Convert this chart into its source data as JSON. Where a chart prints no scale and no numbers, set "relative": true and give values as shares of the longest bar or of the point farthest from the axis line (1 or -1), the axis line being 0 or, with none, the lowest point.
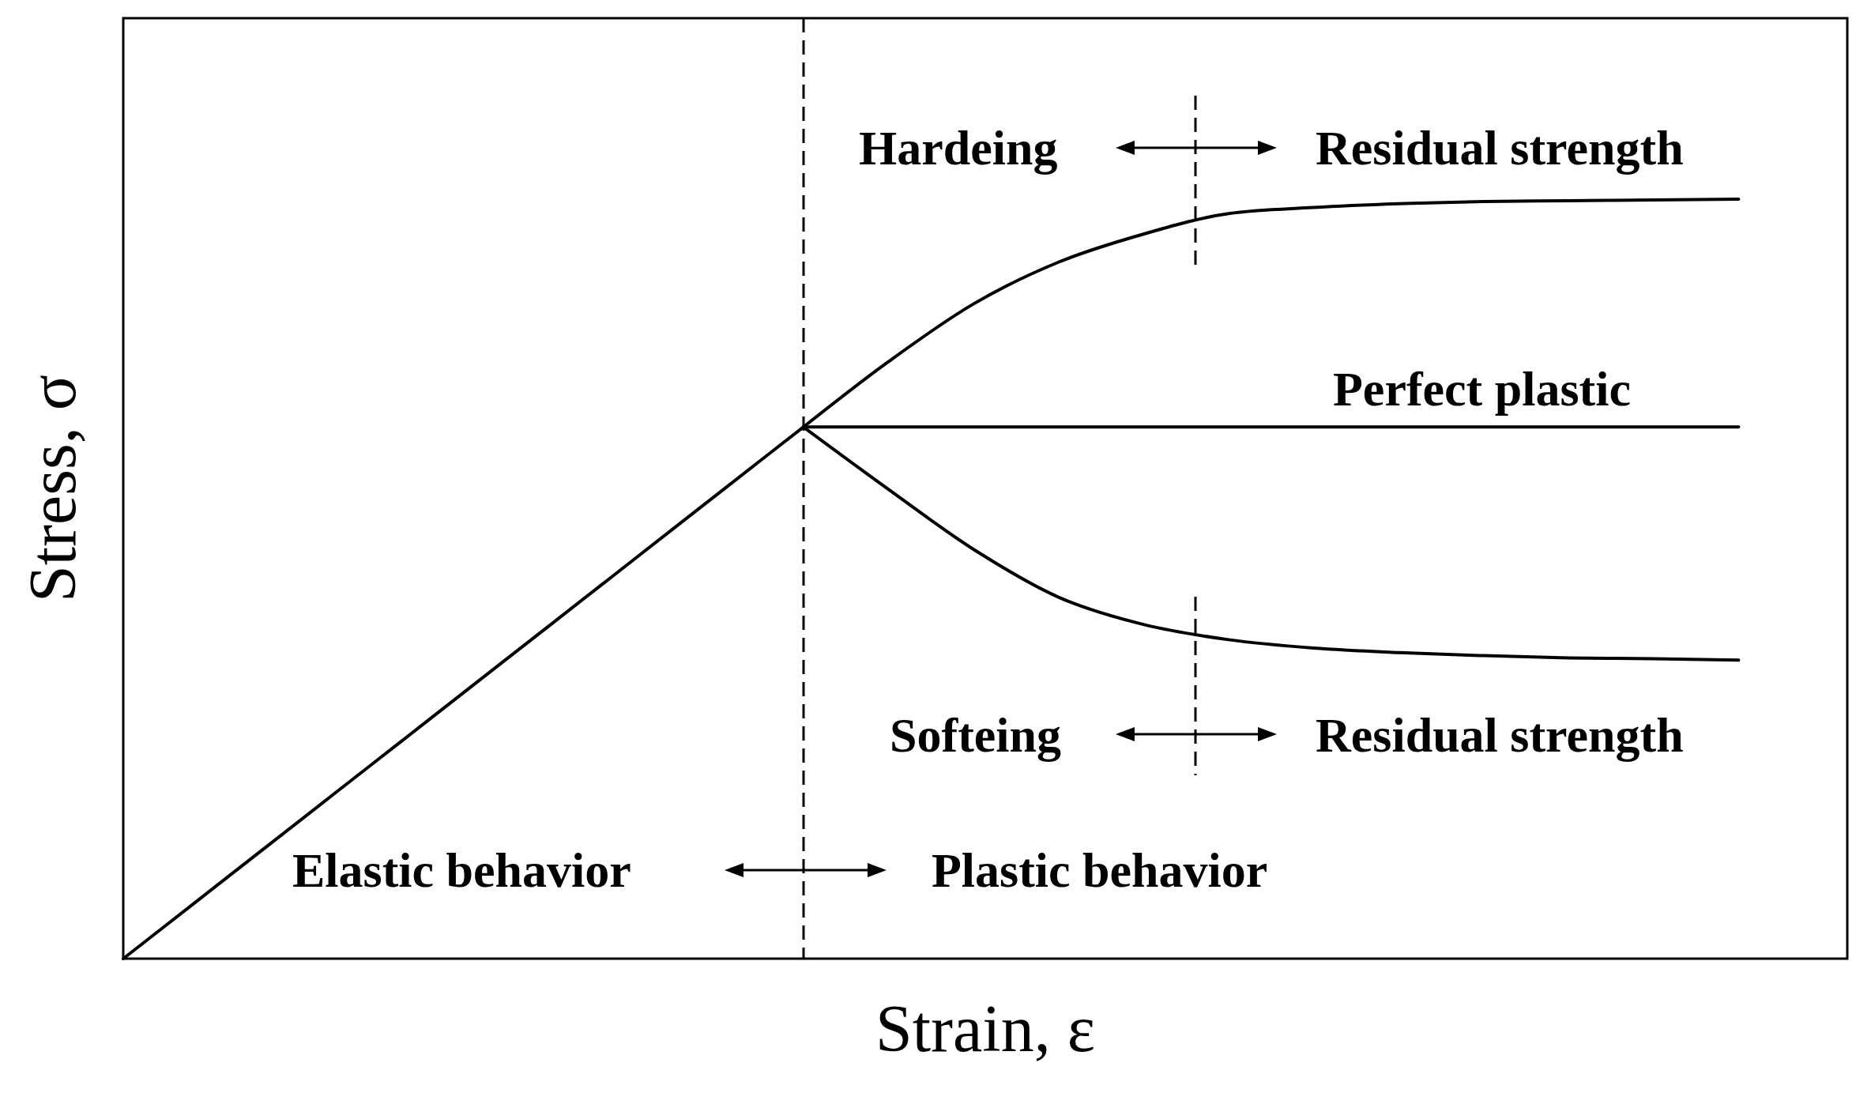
{
  "chart_data": {
    "type": "line",
    "relative": true,
    "xlabel": "Strain, ε",
    "ylabel": "Stress, σ",
    "tick_labels": false,
    "categories": [
      null,
      null,
      null,
      null,
      null,
      null,
      null,
      null,
      null,
      null,
      null,
      null,
      null,
      null,
      null,
      null,
      null,
      null,
      null,
      null
    ],
    "series": [
      {
        "color": "#000000",
        "values": [
          0,
          0.0875,
          0.175,
          0.2625,
          0.35,
          0.4375,
          0.525,
          0.6125,
          0.7,
          null,
          null,
          null,
          null,
          null,
          null,
          null,
          null,
          null,
          null,
          null
        ]
      },
      {
        "color": "#000000",
        "values": [
          null,
          null,
          null,
          null,
          null,
          null,
          null,
          null,
          0.7,
          0.786,
          0.862,
          0.917,
          0.954,
          0.981,
          0.989,
          0.994,
          0.997,
          0.998,
          0.999,
          1.0
        ]
      },
      {
        "color": "#000000",
        "values": [
          null,
          null,
          null,
          null,
          null,
          null,
          null,
          null,
          0.7,
          0.7,
          0.7,
          0.7,
          0.7,
          0.7,
          0.7,
          0.7,
          0.7,
          0.7,
          0.7,
          0.7
        ]
      },
      {
        "color": "#000000",
        "values": [
          null,
          null,
          null,
          null,
          null,
          null,
          null,
          null,
          0.7,
          0.618,
          0.539,
          0.476,
          0.44,
          0.42,
          0.409,
          0.403,
          0.399,
          0.396,
          0.395,
          0.393
        ]
      }
    ],
    "annotations": [
      "Hardeing",
      "Residual strength",
      "Perfect plastic",
      "Softeing",
      "Residual strength",
      "Elastic behavior",
      "Plastic behavior"
    ]
  }
}
